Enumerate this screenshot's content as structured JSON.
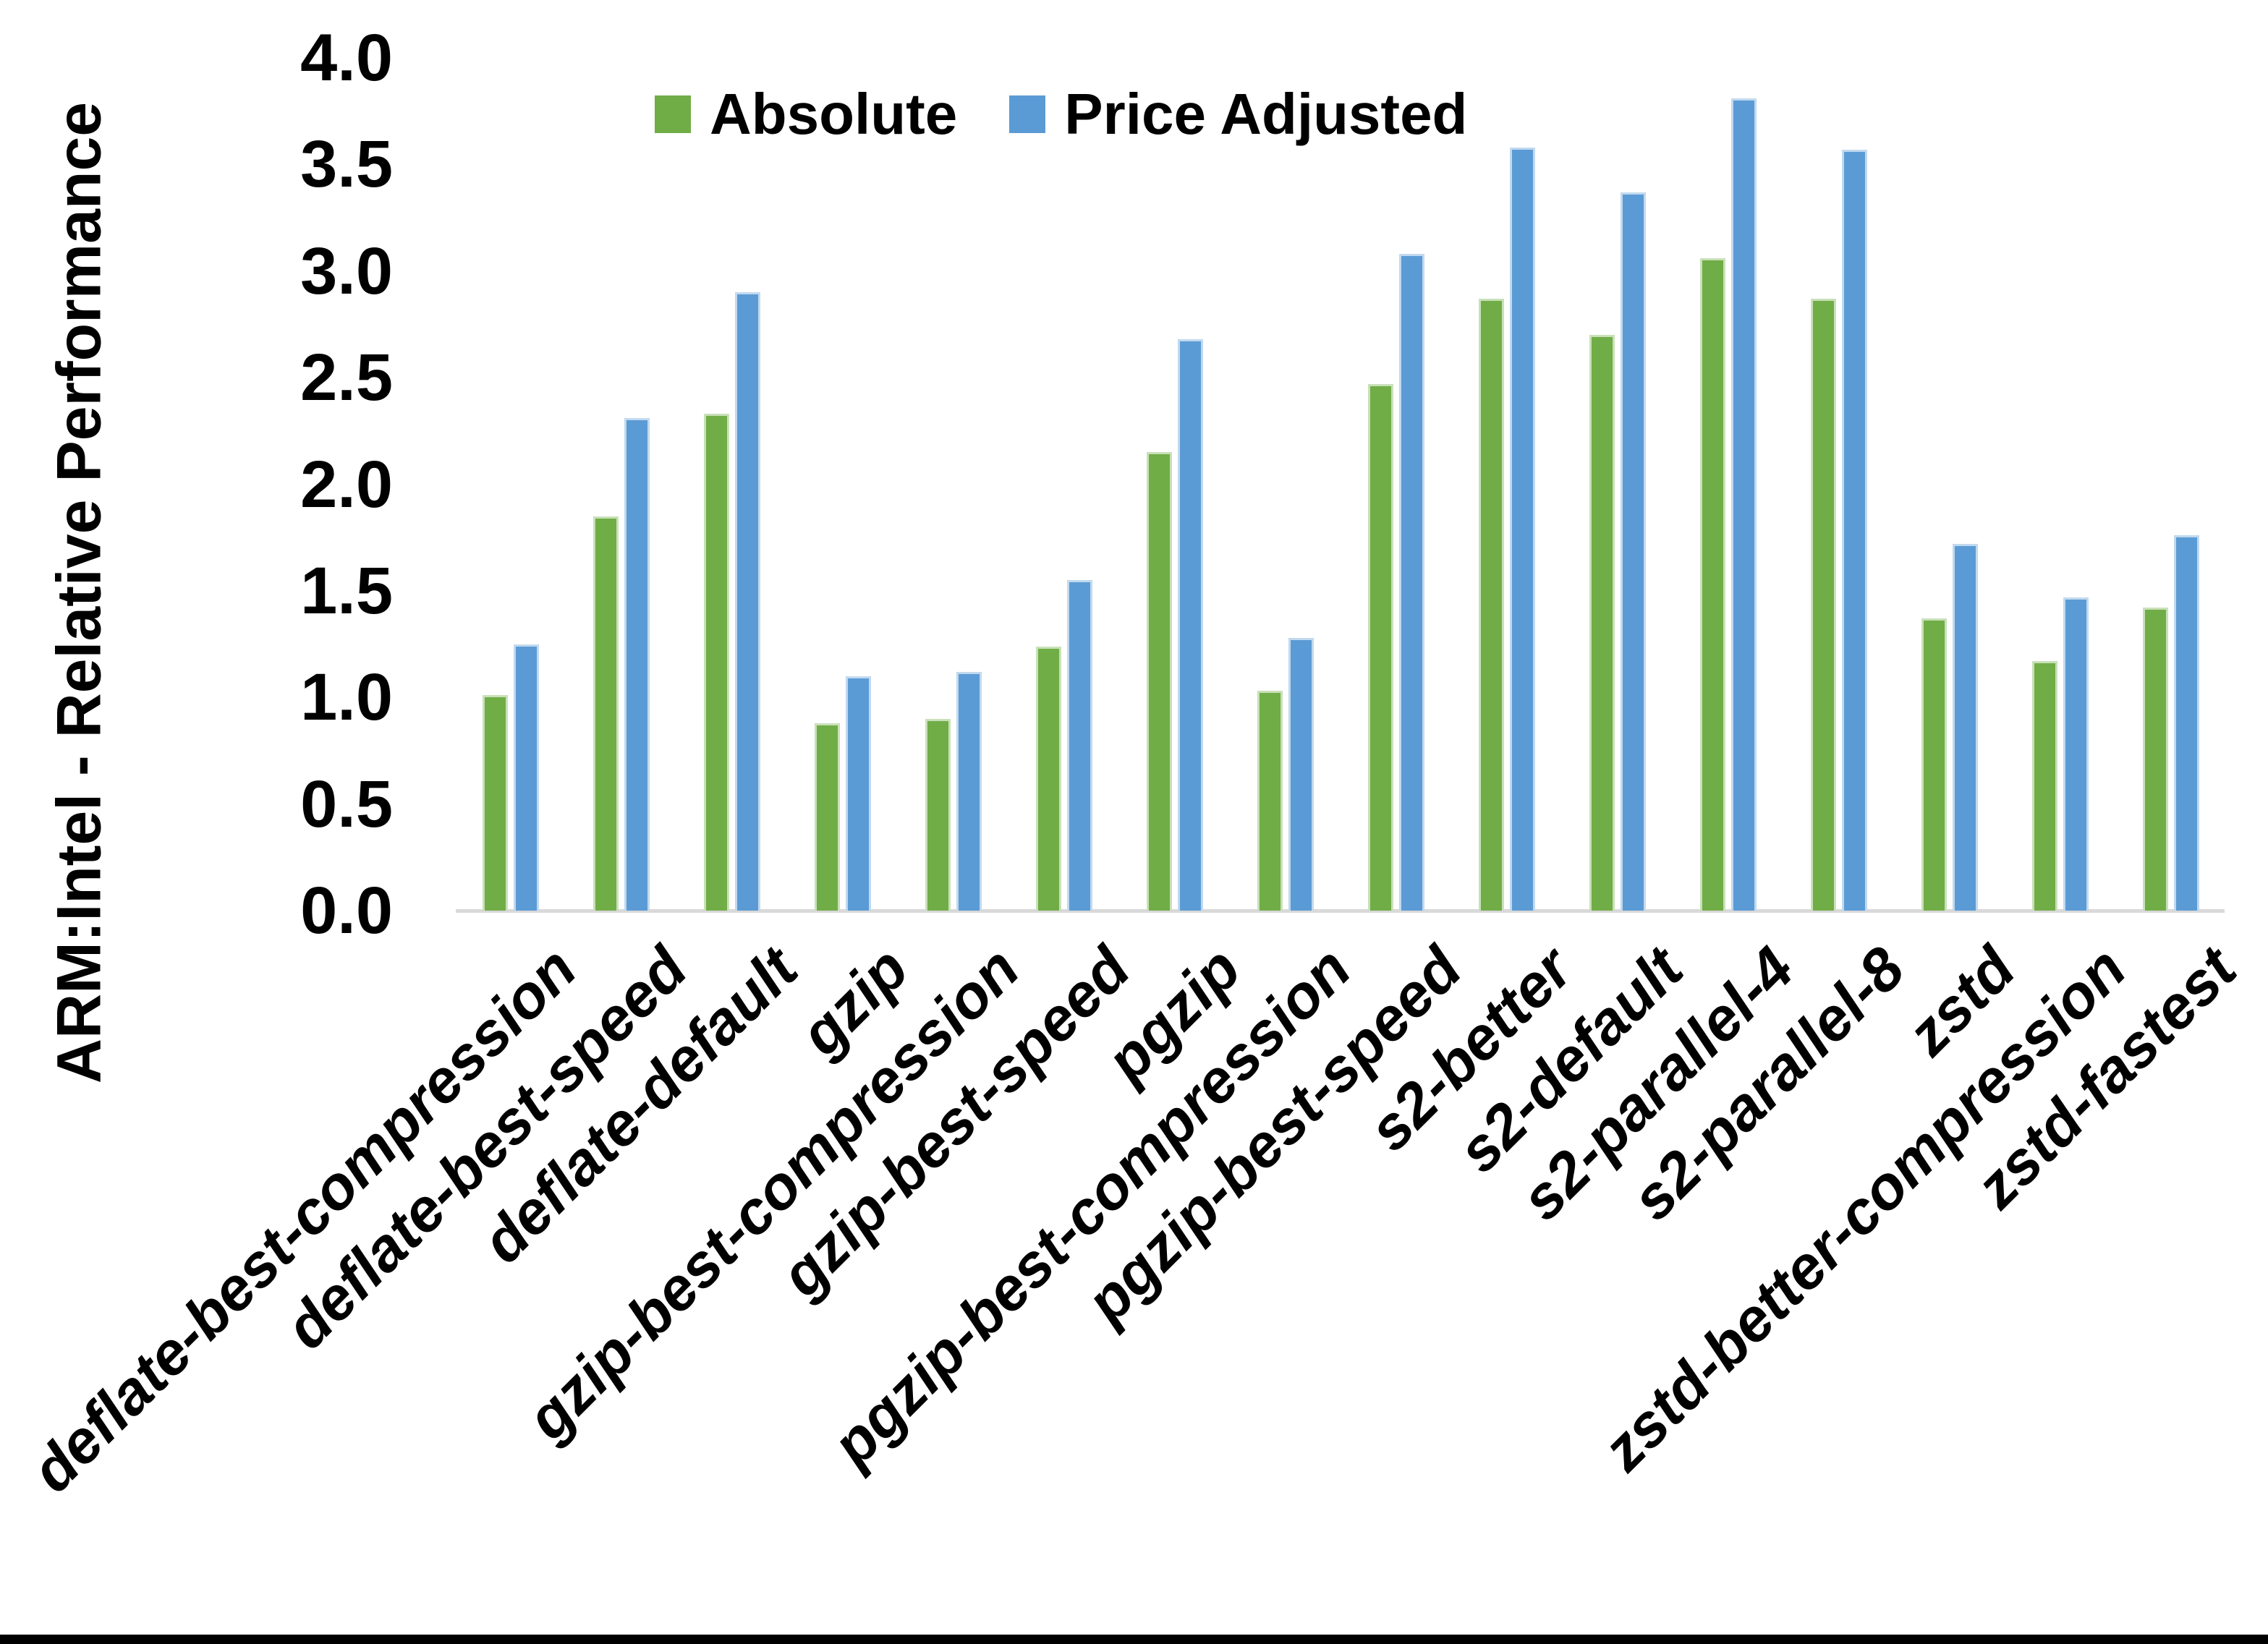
{
  "chart_data": {
    "type": "bar",
    "title": "",
    "ylabel": "ARM:Intel - Relative Performance",
    "xlabel": "",
    "ylim": [
      0.0,
      4.0
    ],
    "ytick_step": 0.5,
    "yticks": [
      "4.0",
      "3.5",
      "3.0",
      "2.5",
      "2.0",
      "1.5",
      "1.0",
      "0.5",
      "0.0"
    ],
    "grid": false,
    "legend_position": "top-center",
    "categories": [
      "deflate-best-compression",
      "deflate-best-speed",
      "deflate-default",
      "gzip",
      "gzip-best-compression",
      "gzip-best-speed",
      "pgzip",
      "pgzip-best-compression",
      "pgzip-best-speed",
      "s2-better",
      "s2-default",
      "s2-parallel-4",
      "s2-parallel-8",
      "zstd",
      "zstd-better-compression",
      "zstd-fastest"
    ],
    "series": [
      {
        "name": "Absolute",
        "color": "#70AD47",
        "edge_color": "#C9E0B9",
        "values": [
          1.01,
          1.85,
          2.33,
          0.88,
          0.9,
          1.24,
          2.15,
          1.03,
          2.47,
          2.87,
          2.7,
          3.06,
          2.87,
          1.37,
          1.17,
          1.42
        ]
      },
      {
        "name": "Price Adjusted",
        "color": "#5B9BD5",
        "edge_color": "#C1D9EF",
        "values": [
          1.25,
          2.31,
          2.9,
          1.1,
          1.12,
          1.55,
          2.68,
          1.28,
          3.08,
          3.58,
          3.37,
          3.81,
          3.57,
          1.72,
          1.47,
          1.76
        ]
      }
    ]
  },
  "colors": {
    "background": "#FFFFFF",
    "text": "#000000",
    "axis_line": "#D9D9D9",
    "bottom_bar": "#000000"
  }
}
